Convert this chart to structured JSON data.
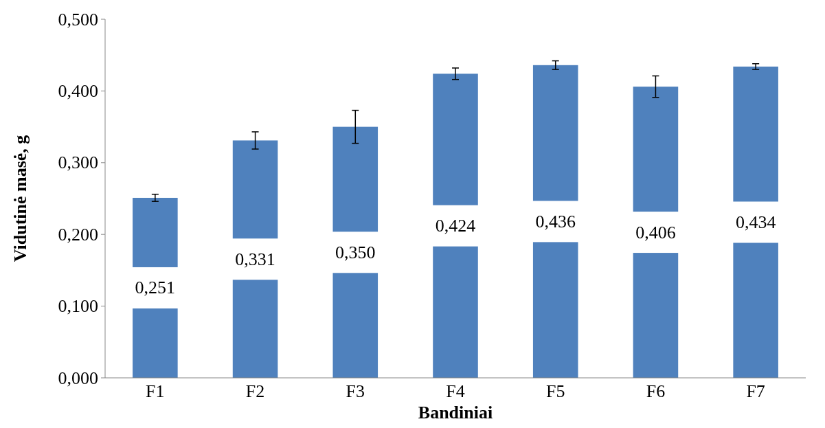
{
  "chart_data": {
    "type": "bar",
    "xlabel": "Bandiniai",
    "ylabel": "Vidutinė masė, g",
    "categories": [
      "F1",
      "F2",
      "F3",
      "F4",
      "F5",
      "F6",
      "F7"
    ],
    "values": [
      0.251,
      0.331,
      0.35,
      0.424,
      0.436,
      0.406,
      0.434
    ],
    "errors": [
      0.005,
      0.012,
      0.023,
      0.008,
      0.006,
      0.015,
      0.004
    ],
    "value_labels": [
      "0,251",
      "0,331",
      "0,350",
      "0,424",
      "0,436",
      "0,406",
      "0,434"
    ],
    "color": "#4f81bd",
    "ylim": [
      0,
      0.5
    ],
    "yticks": [
      {
        "value": 0,
        "label": "0,000"
      },
      {
        "value": 0.1,
        "label": "0,100"
      },
      {
        "value": 0.2,
        "label": "0,200"
      },
      {
        "value": 0.3,
        "label": "0,300"
      },
      {
        "value": 0.4,
        "label": "0,400"
      },
      {
        "value": 0.5,
        "label": "0,500"
      }
    ],
    "grid": false
  }
}
